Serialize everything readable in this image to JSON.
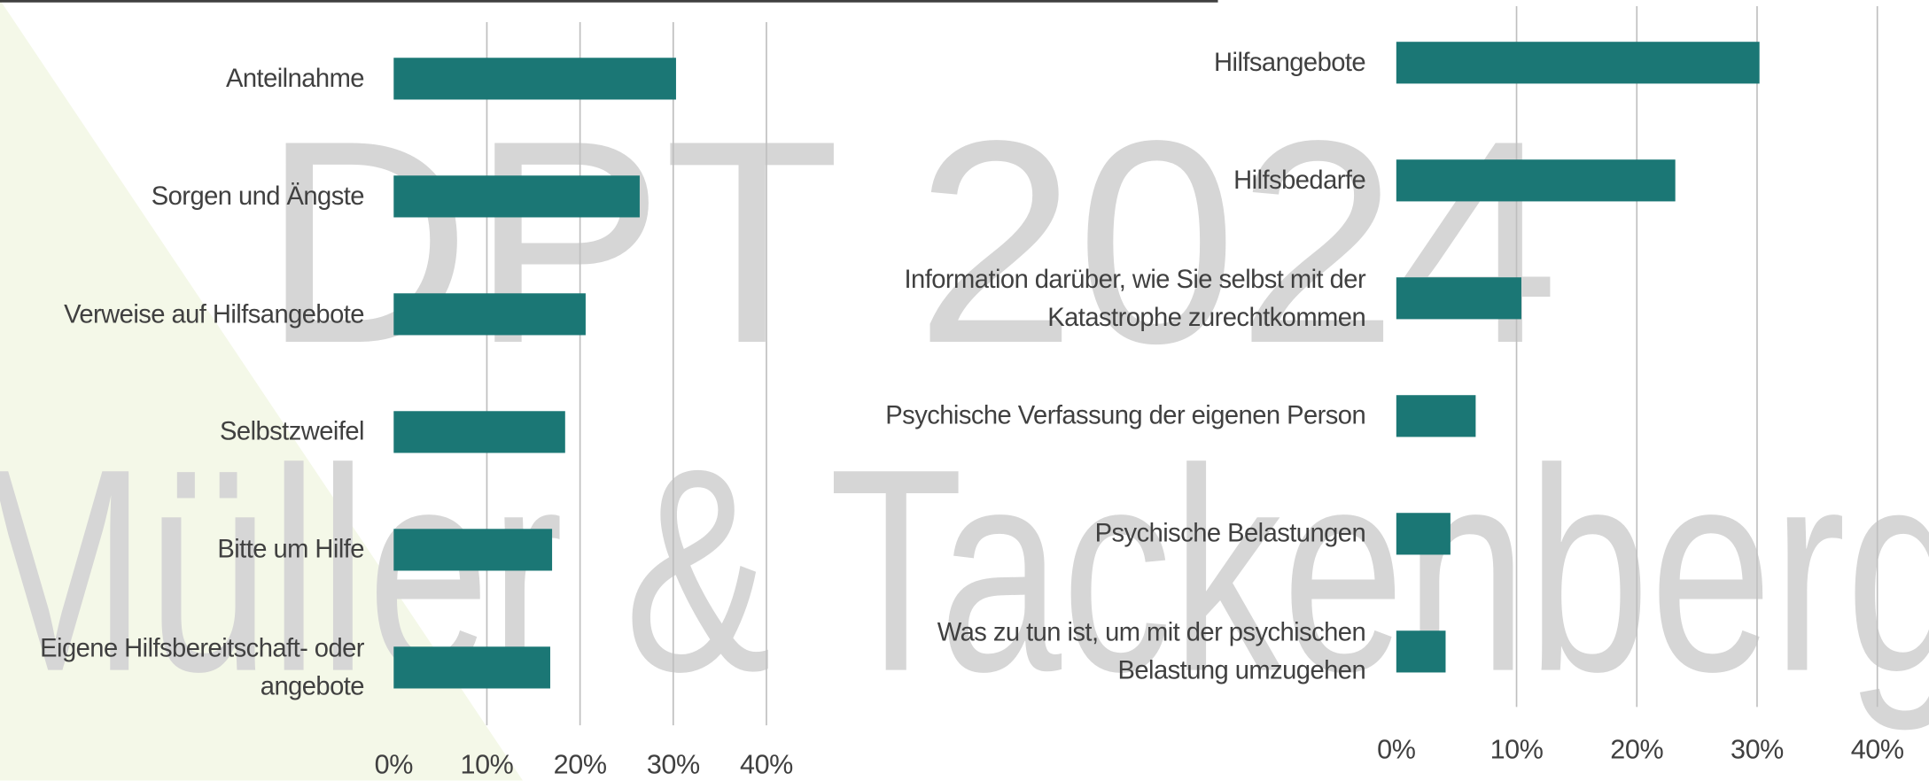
{
  "chart_data": [
    {
      "type": "barh",
      "categories": [
        "Anteilnahme",
        "Sorgen und Ängste",
        "Verweise auf Hilfsangebote",
        "Selbstzweifel",
        "Bitte um Hilfe",
        "Eigene Hilfsbereitschaft- oder angebote"
      ],
      "values": [
        30.3,
        26.4,
        20.6,
        18.4,
        17.0,
        16.8
      ],
      "color": "#1b7775",
      "xlim": [
        0,
        40
      ],
      "xticks": [
        {
          "value": 0,
          "label": "0%"
        },
        {
          "value": 10,
          "label": "10%"
        },
        {
          "value": 20,
          "label": "20%"
        },
        {
          "value": 30,
          "label": "30%"
        },
        {
          "value": 40,
          "label": "40%"
        }
      ],
      "grid": true
    },
    {
      "type": "barh",
      "categories": [
        "Hilfsangebote",
        "Hilfsbedarfe",
        "Information darüber, wie Sie selbst mit der Katastrophe zurechtkommen",
        "Psychische Verfassung der eigenen Person",
        "Psychische Belastungen",
        "Was zu tun ist, um mit der psychischen Belastung umzugehen"
      ],
      "values": [
        30.2,
        23.2,
        10.4,
        6.6,
        4.5,
        4.1
      ],
      "color": "#1b7775",
      "xlim": [
        0,
        40
      ],
      "xticks": [
        {
          "value": 0,
          "label": "0%"
        },
        {
          "value": 10,
          "label": "10%"
        },
        {
          "value": 20,
          "label": "20%"
        },
        {
          "value": 30,
          "label": "30%"
        },
        {
          "value": 40,
          "label": "40%"
        }
      ],
      "grid": true
    }
  ],
  "watermark": [
    "DPT 2024",
    "Müller & Tackenberg"
  ]
}
